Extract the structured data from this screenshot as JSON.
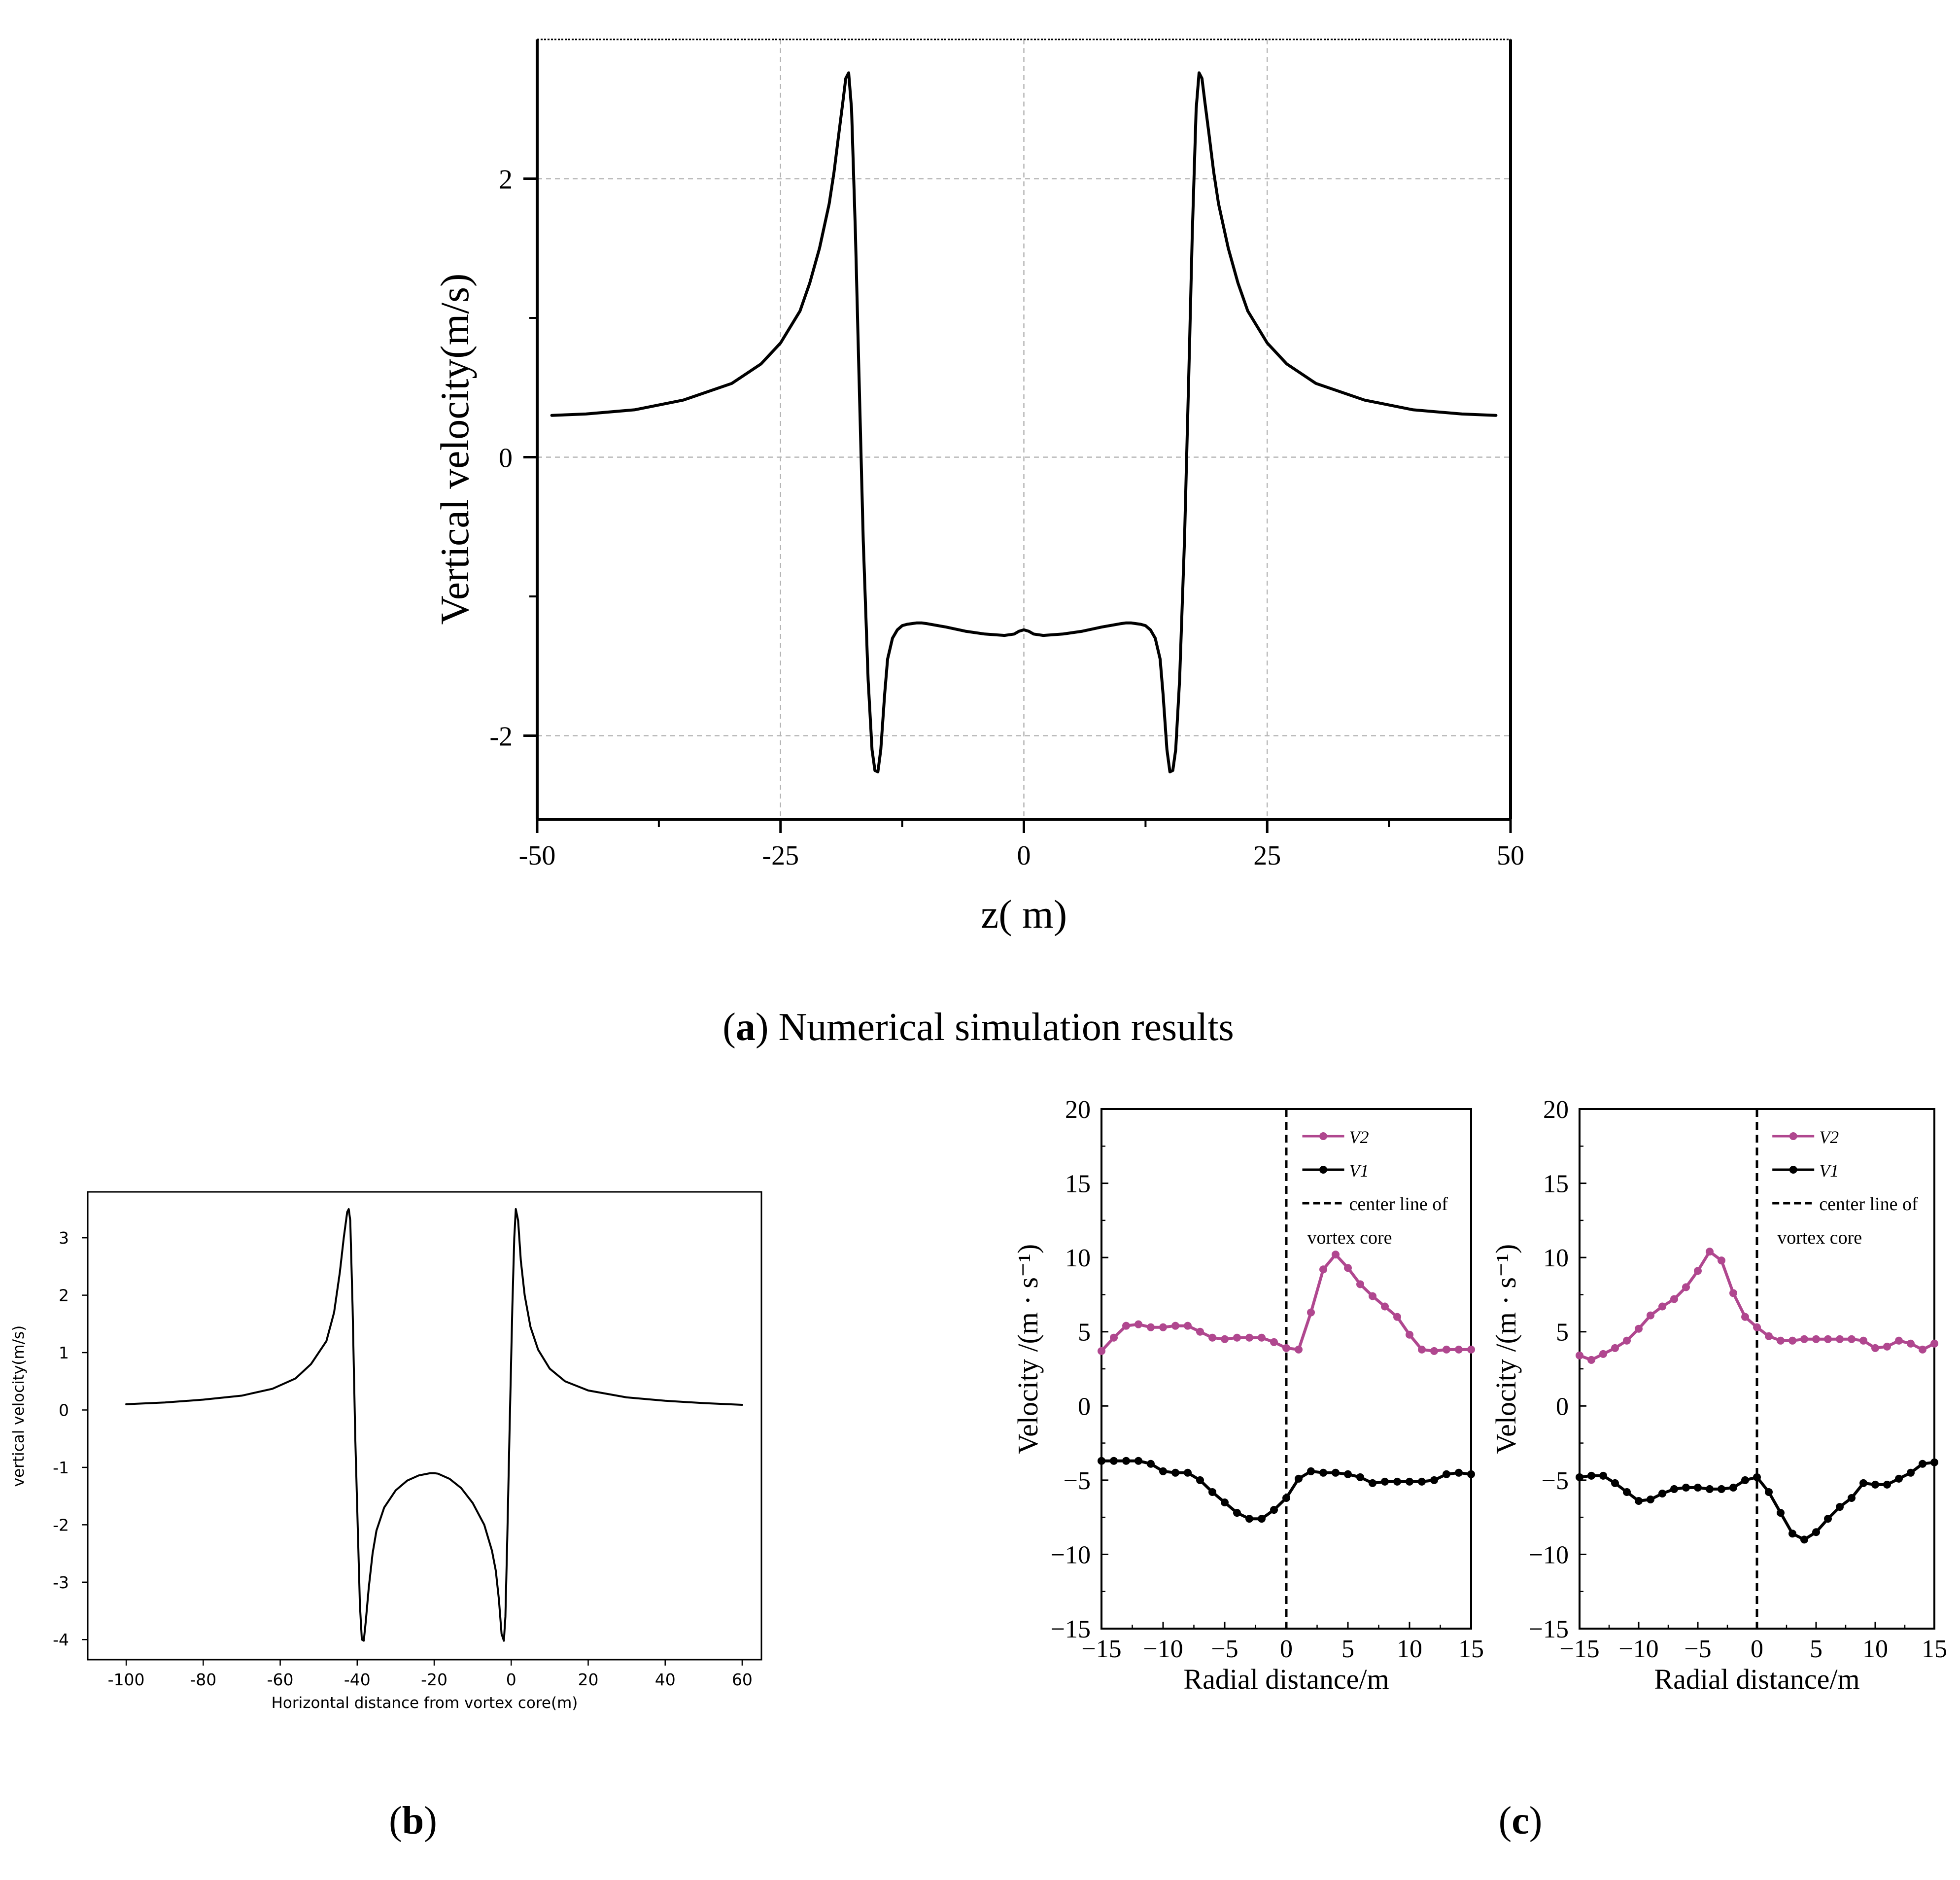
{
  "chart_data": [
    {
      "id": "a",
      "type": "line",
      "panel_caption": {
        "letter": "a",
        "text": " Numerical simulation results"
      },
      "title": "",
      "xlabel": "z( m)",
      "ylabel": "Vertical velocity(m/s)",
      "xlim": [
        -50,
        50
      ],
      "ylim": [
        -2.6,
        3.0
      ],
      "xticks": [
        -50,
        -25,
        0,
        25,
        50
      ],
      "yticks": [
        -2,
        0,
        2
      ],
      "xtick_labels": [
        "-50",
        "-25",
        "0",
        "25",
        "50"
      ],
      "ytick_labels": [
        "-2",
        "0",
        "2"
      ],
      "grid": true,
      "series": [
        {
          "name": "vertical velocity",
          "color": "#000000",
          "x": [
            -48.5,
            -45,
            -40,
            -35,
            -30,
            -27,
            -25,
            -23,
            -22,
            -21,
            -20,
            -19.5,
            -19,
            -18.6,
            -18.3,
            -18.0,
            -17.7,
            -17.3,
            -17,
            -16.5,
            -16,
            -15.6,
            -15.3,
            -15.0,
            -14.7,
            -14.3,
            -14,
            -13.5,
            -13,
            -12.5,
            -12,
            -11.5,
            -11,
            -10.5,
            -10,
            -8,
            -6,
            -4,
            -2,
            -1,
            -0.5,
            0,
            0.5,
            1,
            2,
            4,
            6,
            8,
            10,
            10.5,
            11,
            11.5,
            12,
            12.5,
            13,
            13.5,
            14,
            14.3,
            14.7,
            15.0,
            15.3,
            15.6,
            16,
            16.5,
            17,
            17.3,
            17.7,
            18.0,
            18.3,
            18.6,
            19,
            19.5,
            20,
            21,
            22,
            23,
            25,
            27,
            30,
            35,
            40,
            45,
            48.5
          ],
          "values": [
            0.3,
            0.31,
            0.34,
            0.41,
            0.53,
            0.67,
            0.82,
            1.05,
            1.25,
            1.5,
            1.82,
            2.05,
            2.33,
            2.55,
            2.72,
            2.76,
            2.5,
            1.6,
            0.75,
            -0.6,
            -1.6,
            -2.1,
            -2.25,
            -2.26,
            -2.1,
            -1.7,
            -1.45,
            -1.3,
            -1.24,
            -1.21,
            -1.2,
            -1.195,
            -1.19,
            -1.19,
            -1.195,
            -1.22,
            -1.25,
            -1.27,
            -1.28,
            -1.27,
            -1.25,
            -1.24,
            -1.25,
            -1.27,
            -1.28,
            -1.27,
            -1.25,
            -1.22,
            -1.195,
            -1.19,
            -1.19,
            -1.195,
            -1.2,
            -1.21,
            -1.24,
            -1.3,
            -1.45,
            -1.7,
            -2.1,
            -2.26,
            -2.25,
            -2.1,
            -1.6,
            -0.6,
            0.75,
            1.6,
            2.5,
            2.76,
            2.72,
            2.55,
            2.33,
            2.05,
            1.82,
            1.5,
            1.25,
            1.05,
            0.82,
            0.67,
            0.53,
            0.41,
            0.34,
            0.31,
            0.3
          ]
        }
      ]
    },
    {
      "id": "b",
      "type": "line",
      "panel_caption": {
        "letter": "b",
        "text": ""
      },
      "title": "",
      "xlabel": "Horizontal distance from vortex core(m)",
      "ylabel": "vertical velocity(m/s)",
      "xlim": [
        -110,
        65
      ],
      "ylim": [
        -4.35,
        3.8
      ],
      "xticks": [
        -100,
        -80,
        -60,
        -40,
        -20,
        0,
        20,
        40,
        60
      ],
      "yticks": [
        -4,
        -3,
        -2,
        -1,
        0,
        1,
        2,
        3
      ],
      "xtick_labels": [
        "-100",
        "-80",
        "-60",
        "-40",
        "-20",
        "0",
        "20",
        "40",
        "60"
      ],
      "ytick_labels": [
        "-4",
        "-3",
        "-2",
        "-1",
        "0",
        "1",
        "2",
        "3"
      ],
      "grid": false,
      "series": [
        {
          "name": "vertical velocity",
          "color": "#000000",
          "x": [
            -100,
            -90,
            -80,
            -70,
            -62,
            -56,
            -52,
            -48,
            -46,
            -44.5,
            -43.5,
            -42.6,
            -42.2,
            -41.8,
            -41.2,
            -40.5,
            -39.8,
            -39.3,
            -38.8,
            -38.3,
            -37.8,
            -37,
            -36,
            -35,
            -33,
            -30,
            -27,
            -24,
            -21,
            -20,
            -19,
            -16,
            -13,
            -10,
            -7,
            -5,
            -4,
            -3.2,
            -2.5,
            -1.9,
            -1.5,
            -1.0,
            -0.4,
            0.3,
            0.8,
            1.2,
            1.8,
            2.5,
            3.5,
            5,
            7,
            10,
            14,
            20,
            30,
            40,
            50,
            60
          ],
          "values": [
            0.1,
            0.13,
            0.18,
            0.25,
            0.37,
            0.55,
            0.8,
            1.2,
            1.7,
            2.4,
            3.0,
            3.45,
            3.5,
            3.3,
            1.8,
            -0.5,
            -2.2,
            -3.4,
            -4.0,
            -4.02,
            -3.7,
            -3.1,
            -2.5,
            -2.1,
            -1.7,
            -1.4,
            -1.23,
            -1.14,
            -1.1,
            -1.1,
            -1.11,
            -1.2,
            -1.36,
            -1.62,
            -2.0,
            -2.45,
            -2.8,
            -3.3,
            -3.9,
            -4.02,
            -3.6,
            -2.2,
            -0.3,
            1.8,
            3.0,
            3.5,
            3.3,
            2.6,
            2.0,
            1.45,
            1.05,
            0.72,
            0.5,
            0.34,
            0.22,
            0.16,
            0.12,
            0.09
          ]
        }
      ]
    },
    {
      "id": "c1",
      "type": "line",
      "panel_caption": {
        "letter": "c",
        "text": ""
      },
      "title": "",
      "xlabel": "Radial distance/m",
      "ylabel": "Velocity /(m · s⁻¹)",
      "xlim": [
        -15,
        15
      ],
      "ylim": [
        -15,
        20
      ],
      "xticks": [
        -15,
        -10,
        -5,
        0,
        5,
        10,
        15
      ],
      "yticks": [
        -15,
        -10,
        -5,
        0,
        5,
        10,
        15,
        20
      ],
      "xtick_labels": [
        "−15",
        "−10",
        "−5",
        "0",
        "5",
        "10",
        "15"
      ],
      "ytick_labels": [
        "−15",
        "−10",
        "−5",
        "0",
        "5",
        "10",
        "15",
        "20"
      ],
      "grid": false,
      "legend": {
        "position": "top-right",
        "entries": [
          "V2",
          "V1",
          "center line of",
          "vortex core"
        ]
      },
      "center_line_x": 0,
      "series": [
        {
          "name": "V2",
          "color": "#b0478f",
          "x": [
            -15,
            -14,
            -13,
            -12,
            -11,
            -10,
            -9,
            -8,
            -7,
            -6,
            -5,
            -4,
            -3,
            -2,
            -1,
            0,
            1,
            2,
            3,
            4,
            5,
            6,
            7,
            8,
            9,
            10,
            11,
            12,
            13,
            14,
            15
          ],
          "values": [
            3.7,
            4.6,
            5.4,
            5.5,
            5.3,
            5.3,
            5.4,
            5.4,
            5.0,
            4.6,
            4.5,
            4.6,
            4.6,
            4.6,
            4.3,
            3.9,
            3.8,
            6.3,
            9.2,
            10.2,
            9.3,
            8.2,
            7.4,
            6.7,
            6.0,
            4.8,
            3.8,
            3.7,
            3.8,
            3.8,
            3.8
          ]
        },
        {
          "name": "V1",
          "color": "#000000",
          "x": [
            -15,
            -14,
            -13,
            -12,
            -11,
            -10,
            -9,
            -8,
            -7,
            -6,
            -5,
            -4,
            -3,
            -2,
            -1,
            0,
            1,
            2,
            3,
            4,
            5,
            6,
            7,
            8,
            9,
            10,
            11,
            12,
            13,
            14,
            15
          ],
          "values": [
            -3.7,
            -3.7,
            -3.7,
            -3.7,
            -3.9,
            -4.4,
            -4.5,
            -4.5,
            -5.0,
            -5.8,
            -6.5,
            -7.2,
            -7.6,
            -7.6,
            -7.0,
            -6.2,
            -4.9,
            -4.4,
            -4.5,
            -4.5,
            -4.6,
            -4.8,
            -5.2,
            -5.1,
            -5.1,
            -5.1,
            -5.1,
            -5.0,
            -4.6,
            -4.5,
            -4.6
          ]
        }
      ]
    },
    {
      "id": "c2",
      "type": "line",
      "panel_caption": {
        "letter": "",
        "text": ""
      },
      "title": "",
      "xlabel": "Radial distance/m",
      "ylabel": "Velocity /(m · s⁻¹)",
      "xlim": [
        -15,
        15
      ],
      "ylim": [
        -15,
        20
      ],
      "xticks": [
        -15,
        -10,
        -5,
        0,
        5,
        10,
        15
      ],
      "yticks": [
        -15,
        -10,
        -5,
        0,
        5,
        10,
        15,
        20
      ],
      "xtick_labels": [
        "−15",
        "−10",
        "−5",
        "0",
        "5",
        "10",
        "15"
      ],
      "ytick_labels": [
        "−15",
        "−10",
        "−5",
        "0",
        "5",
        "10",
        "15",
        "20"
      ],
      "grid": false,
      "legend": {
        "position": "top-right",
        "entries": [
          "V2",
          "V1",
          "center line of",
          "vortex core"
        ]
      },
      "center_line_x": 0,
      "series": [
        {
          "name": "V2",
          "color": "#b0478f",
          "x": [
            -15,
            -14,
            -13,
            -12,
            -11,
            -10,
            -9,
            -8,
            -7,
            -6,
            -5,
            -4,
            -3,
            -2,
            -1,
            0,
            1,
            2,
            3,
            4,
            5,
            6,
            7,
            8,
            9,
            10,
            11,
            12,
            13,
            14,
            15
          ],
          "values": [
            3.4,
            3.1,
            3.5,
            3.9,
            4.4,
            5.2,
            6.1,
            6.7,
            7.2,
            8.0,
            9.1,
            10.4,
            9.8,
            7.6,
            6.0,
            5.3,
            4.7,
            4.4,
            4.4,
            4.5,
            4.5,
            4.5,
            4.5,
            4.5,
            4.4,
            3.9,
            4.0,
            4.4,
            4.2,
            3.8,
            4.2
          ]
        },
        {
          "name": "V1",
          "color": "#000000",
          "x": [
            -15,
            -14,
            -13,
            -12,
            -11,
            -10,
            -9,
            -8,
            -7,
            -6,
            -5,
            -4,
            -3,
            -2,
            -1,
            0,
            1,
            2,
            3,
            4,
            5,
            6,
            7,
            8,
            9,
            10,
            11,
            12,
            13,
            14,
            15
          ],
          "values": [
            -4.8,
            -4.7,
            -4.7,
            -5.2,
            -5.8,
            -6.4,
            -6.3,
            -5.9,
            -5.6,
            -5.5,
            -5.5,
            -5.6,
            -5.6,
            -5.5,
            -5.0,
            -4.8,
            -5.8,
            -7.2,
            -8.6,
            -9.0,
            -8.5,
            -7.6,
            -6.8,
            -6.2,
            -5.2,
            -5.3,
            -5.3,
            -4.9,
            -4.5,
            -3.9,
            -3.8
          ]
        }
      ]
    }
  ]
}
